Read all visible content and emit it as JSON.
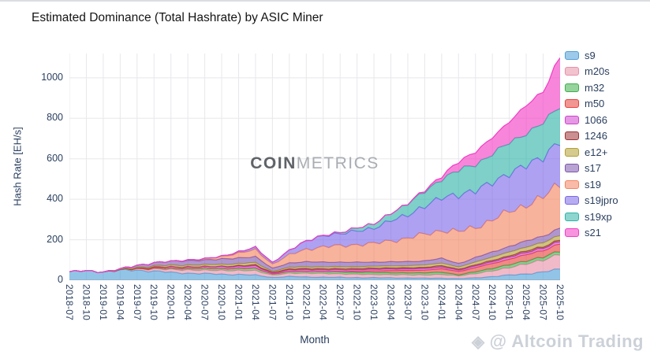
{
  "watermarks": {
    "center_bold": "COIN",
    "center_light": "METRICS",
    "corner_icon": "◈",
    "corner_text": "@ Altcoin Trading"
  },
  "chart_data": {
    "type": "area",
    "stacked": true,
    "title": "Estimated Dominance (Total Hashrate) by ASIC Miner",
    "xlabel": "Month",
    "ylabel": "Hash Rate [EH/s]",
    "ylim": [
      0,
      1120
    ],
    "yticks": [
      0,
      200,
      400,
      600,
      800,
      1000
    ],
    "grid": true,
    "legend_position": "right",
    "categories": [
      "2018-07",
      "2018-10",
      "2019-01",
      "2019-04",
      "2019-07",
      "2019-10",
      "2020-01",
      "2020-04",
      "2020-07",
      "2020-10",
      "2021-01",
      "2021-04",
      "2021-07",
      "2021-10",
      "2022-01",
      "2022-04",
      "2022-07",
      "2022-10",
      "2023-01",
      "2023-04",
      "2023-07",
      "2023-10",
      "2024-01",
      "2024-04",
      "2024-07",
      "2024-10",
      "2025-01",
      "2025-04",
      "2025-07",
      "2025-10"
    ],
    "series": [
      {
        "name": "s9",
        "color": "#4f9fd8",
        "values": [
          42,
          46,
          42,
          48,
          50,
          45,
          38,
          35,
          32,
          30,
          28,
          25,
          14,
          18,
          16,
          15,
          14,
          13,
          12,
          12,
          11,
          10,
          10,
          8,
          12,
          18,
          25,
          32,
          40,
          55
        ]
      },
      {
        "name": "m20s",
        "color": "#e88fa8",
        "values": [
          0,
          0,
          0,
          2,
          6,
          10,
          14,
          16,
          17,
          18,
          20,
          22,
          11,
          16,
          18,
          18,
          17,
          16,
          16,
          15,
          15,
          16,
          18,
          14,
          20,
          28,
          38,
          48,
          60,
          75
        ]
      },
      {
        "name": "m32",
        "color": "#3fae4c",
        "values": [
          0,
          0,
          0,
          0,
          2,
          4,
          6,
          8,
          9,
          10,
          11,
          12,
          6,
          9,
          10,
          10,
          10,
          10,
          10,
          10,
          10,
          10,
          12,
          4,
          10,
          12,
          14,
          15,
          15,
          15
        ]
      },
      {
        "name": "m50",
        "color": "#e8403c",
        "values": [
          0,
          0,
          0,
          0,
          0,
          0,
          0,
          0,
          0,
          0,
          0,
          0,
          0,
          0,
          0,
          0,
          2,
          5,
          8,
          10,
          12,
          14,
          16,
          18,
          20,
          24,
          28,
          30,
          33,
          36
        ]
      },
      {
        "name": "1066",
        "color": "#cf43ce",
        "values": [
          0,
          0,
          0,
          0,
          2,
          5,
          7,
          8,
          8,
          9,
          9,
          10,
          5,
          7,
          8,
          8,
          8,
          8,
          8,
          8,
          8,
          8,
          9,
          6,
          8,
          9,
          10,
          11,
          11,
          12
        ]
      },
      {
        "name": "1246",
        "color": "#9c3336",
        "values": [
          0,
          0,
          0,
          0,
          0,
          0,
          0,
          0,
          0,
          2,
          4,
          6,
          3,
          5,
          6,
          6,
          6,
          6,
          6,
          6,
          6,
          6,
          7,
          5,
          6,
          7,
          7,
          8,
          8,
          8
        ]
      },
      {
        "name": "e12+",
        "color": "#b3a032",
        "values": [
          0,
          0,
          0,
          2,
          4,
          6,
          8,
          9,
          9,
          10,
          10,
          11,
          5,
          8,
          9,
          9,
          9,
          9,
          9,
          10,
          10,
          11,
          13,
          10,
          14,
          16,
          18,
          19,
          20,
          22
        ]
      },
      {
        "name": "s17",
        "color": "#7e57ae",
        "values": [
          0,
          0,
          0,
          2,
          10,
          16,
          20,
          22,
          24,
          26,
          28,
          30,
          15,
          22,
          24,
          24,
          23,
          22,
          21,
          20,
          20,
          21,
          23,
          18,
          22,
          25,
          28,
          30,
          32,
          35
        ]
      },
      {
        "name": "s19",
        "color": "#f4845f",
        "values": [
          0,
          0,
          0,
          0,
          0,
          0,
          0,
          2,
          6,
          12,
          24,
          34,
          20,
          40,
          62,
          75,
          80,
          88,
          90,
          105,
          115,
          130,
          140,
          155,
          150,
          160,
          170,
          180,
          190,
          220
        ]
      },
      {
        "name": "s19jpro",
        "color": "#7c68e8",
        "values": [
          0,
          0,
          0,
          0,
          0,
          0,
          0,
          0,
          0,
          2,
          6,
          12,
          8,
          22,
          42,
          55,
          60,
          68,
          75,
          100,
          115,
          140,
          160,
          185,
          180,
          185,
          190,
          195,
          200,
          212
        ]
      },
      {
        "name": "s19xp",
        "color": "#2fb3a8",
        "values": [
          0,
          0,
          0,
          0,
          0,
          0,
          0,
          0,
          0,
          0,
          0,
          0,
          0,
          0,
          0,
          2,
          6,
          16,
          22,
          36,
          56,
          72,
          92,
          120,
          130,
          140,
          150,
          160,
          166,
          172
        ]
      },
      {
        "name": "s21",
        "color": "#f23cc4",
        "values": [
          0,
          0,
          0,
          0,
          0,
          0,
          0,
          0,
          0,
          0,
          0,
          0,
          0,
          0,
          0,
          0,
          0,
          0,
          0,
          0,
          2,
          6,
          16,
          42,
          62,
          82,
          105,
          135,
          160,
          240
        ]
      }
    ]
  }
}
